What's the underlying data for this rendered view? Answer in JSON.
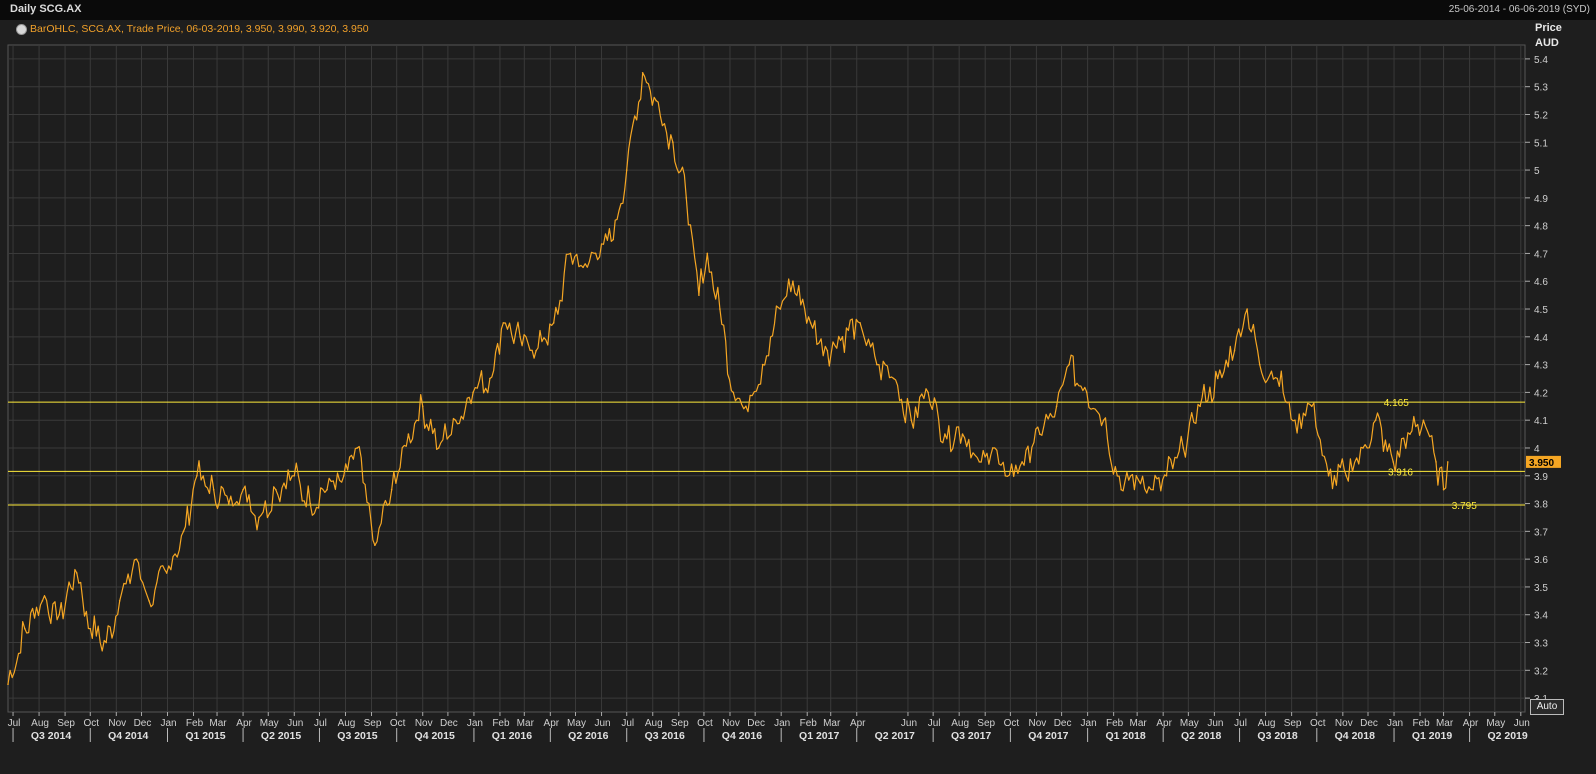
{
  "header": {
    "title": "Daily SCG.AX",
    "date_range": "25-06-2014 - 06-06-2019 (SYD)"
  },
  "legend": {
    "text": "BarOHLC, SCG.AX, Trade Price, 06-03-2019, 3.950, 3.990, 3.920, 3.950"
  },
  "axis": {
    "price_label": "Price",
    "currency_label": "AUD"
  },
  "controls": {
    "auto_label": "Auto"
  },
  "colors": {
    "background": "#1e1e1e",
    "grid": "#3a3a3a",
    "price": "#f5a623",
    "levels": "#ffeb3b",
    "last_price_badge": "#f5a623"
  },
  "chart_data": {
    "type": "line",
    "series": [
      {
        "x": [
          "2014-06-25",
          "2014-07-15",
          "2014-08-05",
          "2014-08-25",
          "2014-09-15",
          "2014-10-01",
          "2014-10-20",
          "2014-11-05",
          "2014-11-25",
          "2014-12-10",
          "2014-12-31",
          "2015-01-20",
          "2015-02-05",
          "2015-02-25",
          "2015-03-15",
          "2015-04-01",
          "2015-04-20",
          "2015-05-10",
          "2015-06-01",
          "2015-06-20",
          "2015-07-10",
          "2015-07-30",
          "2015-08-15",
          "2015-09-05",
          "2015-09-25",
          "2015-10-15",
          "2015-11-01",
          "2015-11-20",
          "2015-12-10",
          "2015-12-31",
          "2016-01-20",
          "2016-02-05",
          "2016-02-25",
          "2016-03-15",
          "2016-04-05",
          "2016-04-25",
          "2016-05-10",
          "2016-05-25",
          "2016-06-15",
          "2016-07-01",
          "2016-07-20",
          "2016-08-05",
          "2016-08-25",
          "2016-09-10",
          "2016-09-25",
          "2016-10-05",
          "2016-10-20",
          "2016-11-05",
          "2016-11-20",
          "2016-12-10",
          "2016-12-31",
          "2017-01-15",
          "2017-02-05",
          "2017-02-25",
          "2017-03-15",
          "2017-04-05",
          "2017-04-25",
          "2017-05-15",
          "2017-06-05",
          "2017-06-25",
          "2017-07-15",
          "2017-08-05",
          "2017-08-25",
          "2017-09-10",
          "2017-09-25",
          "2017-10-15",
          "2017-11-05",
          "2017-11-25",
          "2017-12-10",
          "2017-12-31",
          "2018-01-20",
          "2018-02-10",
          "2018-02-28",
          "2018-03-20",
          "2018-04-05",
          "2018-04-25",
          "2018-05-15",
          "2018-06-05",
          "2018-06-25",
          "2018-07-10",
          "2018-07-25",
          "2018-08-15",
          "2018-09-05",
          "2018-09-25",
          "2018-10-15",
          "2018-11-05",
          "2018-11-25",
          "2018-12-10",
          "2018-12-31",
          "2019-01-20",
          "2019-02-05",
          "2019-02-20",
          "2019-03-01",
          "2019-03-06"
        ],
        "y": [
          3.15,
          3.35,
          3.45,
          3.4,
          3.55,
          3.35,
          3.3,
          3.45,
          3.6,
          3.45,
          3.55,
          3.7,
          3.9,
          3.85,
          3.8,
          3.85,
          3.75,
          3.85,
          3.9,
          3.8,
          3.85,
          3.9,
          4.0,
          3.65,
          3.85,
          4.05,
          4.15,
          4.0,
          4.1,
          4.2,
          4.25,
          4.45,
          4.4,
          4.35,
          4.45,
          4.7,
          4.65,
          4.7,
          4.75,
          5.0,
          5.35,
          5.25,
          5.1,
          4.9,
          4.55,
          4.7,
          4.5,
          4.2,
          4.15,
          4.3,
          4.5,
          4.6,
          4.45,
          4.35,
          4.4,
          4.45,
          4.3,
          4.25,
          4.1,
          4.2,
          4.05,
          4.05,
          3.95,
          4.0,
          3.9,
          3.95,
          4.05,
          4.15,
          4.3,
          4.2,
          4.1,
          3.85,
          3.9,
          3.85,
          3.9,
          4.0,
          4.15,
          4.25,
          4.35,
          4.5,
          4.3,
          4.25,
          4.1,
          4.15,
          3.9,
          3.9,
          4.0,
          4.1,
          3.95,
          4.05,
          4.1,
          3.95,
          3.85,
          3.95
        ]
      }
    ],
    "ylim": [
      3.05,
      5.45
    ],
    "y_ticks": [
      "3.1",
      "3.2",
      "3.3",
      "3.4",
      "3.5",
      "3.6",
      "3.7",
      "3.8",
      "3.9",
      "4",
      "4.1",
      "4.2",
      "4.3",
      "4.4",
      "4.5",
      "4.6",
      "4.7",
      "4.8",
      "4.9",
      "5",
      "5.1",
      "5.2",
      "5.3",
      "5.4"
    ],
    "x_start": "2014-06-25",
    "x_end": "2019-06-06",
    "month_ticks": [
      {
        "date": "2014-07-01",
        "label": "Jul"
      },
      {
        "date": "2014-08-01",
        "label": "Aug"
      },
      {
        "date": "2014-09-01",
        "label": "Sep"
      },
      {
        "date": "2014-10-01",
        "label": "Oct"
      },
      {
        "date": "2014-11-01",
        "label": "Nov"
      },
      {
        "date": "2014-12-01",
        "label": "Dec"
      },
      {
        "date": "2015-01-01",
        "label": "Jan"
      },
      {
        "date": "2015-02-01",
        "label": "Feb"
      },
      {
        "date": "2015-03-01",
        "label": "Mar"
      },
      {
        "date": "2015-04-01",
        "label": "Apr"
      },
      {
        "date": "2015-05-01",
        "label": "May"
      },
      {
        "date": "2015-06-01",
        "label": "Jun"
      },
      {
        "date": "2015-07-01",
        "label": "Jul"
      },
      {
        "date": "2015-08-01",
        "label": "Aug"
      },
      {
        "date": "2015-09-01",
        "label": "Sep"
      },
      {
        "date": "2015-10-01",
        "label": "Oct"
      },
      {
        "date": "2015-11-01",
        "label": "Nov"
      },
      {
        "date": "2015-12-01",
        "label": "Dec"
      },
      {
        "date": "2016-01-01",
        "label": "Jan"
      },
      {
        "date": "2016-02-01",
        "label": "Feb"
      },
      {
        "date": "2016-03-01",
        "label": "Mar"
      },
      {
        "date": "2016-04-01",
        "label": "Apr"
      },
      {
        "date": "2016-05-01",
        "label": "May"
      },
      {
        "date": "2016-06-01",
        "label": "Jun"
      },
      {
        "date": "2016-07-01",
        "label": "Jul"
      },
      {
        "date": "2016-08-01",
        "label": "Aug"
      },
      {
        "date": "2016-09-01",
        "label": "Sep"
      },
      {
        "date": "2016-10-01",
        "label": "Oct"
      },
      {
        "date": "2016-11-01",
        "label": "Nov"
      },
      {
        "date": "2016-12-01",
        "label": "Dec"
      },
      {
        "date": "2017-01-01",
        "label": "Jan"
      },
      {
        "date": "2017-02-01",
        "label": "Feb"
      },
      {
        "date": "2017-03-01",
        "label": "Mar"
      },
      {
        "date": "2017-04-01",
        "label": "Apr"
      },
      {
        "date": "2017-06-01",
        "label": "Jun"
      },
      {
        "date": "2017-07-01",
        "label": "Jul"
      },
      {
        "date": "2017-08-01",
        "label": "Aug"
      },
      {
        "date": "2017-09-01",
        "label": "Sep"
      },
      {
        "date": "2017-10-01",
        "label": "Oct"
      },
      {
        "date": "2017-11-01",
        "label": "Nov"
      },
      {
        "date": "2017-12-01",
        "label": "Dec"
      },
      {
        "date": "2018-01-01",
        "label": "Jan"
      },
      {
        "date": "2018-02-01",
        "label": "Feb"
      },
      {
        "date": "2018-03-01",
        "label": "Mar"
      },
      {
        "date": "2018-04-01",
        "label": "Apr"
      },
      {
        "date": "2018-05-01",
        "label": "May"
      },
      {
        "date": "2018-06-01",
        "label": "Jun"
      },
      {
        "date": "2018-07-01",
        "label": "Jul"
      },
      {
        "date": "2018-08-01",
        "label": "Aug"
      },
      {
        "date": "2018-09-01",
        "label": "Sep"
      },
      {
        "date": "2018-10-01",
        "label": "Oct"
      },
      {
        "date": "2018-11-01",
        "label": "Nov"
      },
      {
        "date": "2018-12-01",
        "label": "Dec"
      },
      {
        "date": "2019-01-01",
        "label": "Jan"
      },
      {
        "date": "2019-02-01",
        "label": "Feb"
      },
      {
        "date": "2019-03-01",
        "label": "Mar"
      },
      {
        "date": "2019-04-01",
        "label": "Apr"
      },
      {
        "date": "2019-05-01",
        "label": "May"
      },
      {
        "date": "2019-06-01",
        "label": "Jun"
      }
    ],
    "quarter_labels": [
      {
        "start": "2014-07-01",
        "label": "Q3 2014"
      },
      {
        "start": "2014-10-01",
        "label": "Q4 2014"
      },
      {
        "start": "2015-01-01",
        "label": "Q1 2015"
      },
      {
        "start": "2015-04-01",
        "label": "Q2 2015"
      },
      {
        "start": "2015-07-01",
        "label": "Q3 2015"
      },
      {
        "start": "2015-10-01",
        "label": "Q4 2015"
      },
      {
        "start": "2016-01-01",
        "label": "Q1 2016"
      },
      {
        "start": "2016-04-01",
        "label": "Q2 2016"
      },
      {
        "start": "2016-07-01",
        "label": "Q3 2016"
      },
      {
        "start": "2016-10-01",
        "label": "Q4 2016"
      },
      {
        "start": "2017-01-01",
        "label": "Q1 2017"
      },
      {
        "start": "2017-04-01",
        "label": "Q2 2017"
      },
      {
        "start": "2017-07-01",
        "label": "Q3 2017"
      },
      {
        "start": "2017-10-01",
        "label": "Q4 2017"
      },
      {
        "start": "2018-01-01",
        "label": "Q1 2018"
      },
      {
        "start": "2018-04-01",
        "label": "Q2 2018"
      },
      {
        "start": "2018-07-01",
        "label": "Q3 2018"
      },
      {
        "start": "2018-10-01",
        "label": "Q4 2018"
      },
      {
        "start": "2019-01-01",
        "label": "Q1 2019"
      },
      {
        "start": "2019-04-01",
        "label": "Q2 2019"
      }
    ],
    "horizontal_levels": [
      {
        "value": 4.165,
        "label": "4.165",
        "label_date": "2018-12-15"
      },
      {
        "value": 3.916,
        "label": "3.916",
        "label_date": "2018-12-20"
      },
      {
        "value": 3.795,
        "label": "3.795",
        "label_date": "2019-03-06"
      }
    ],
    "last_price": {
      "value": 3.95,
      "label": "3.950"
    },
    "grid": true
  }
}
